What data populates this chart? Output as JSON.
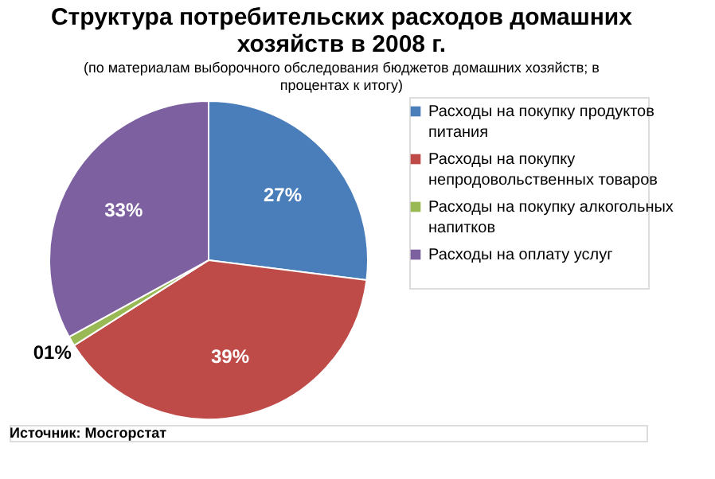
{
  "chart_data": {
    "type": "pie",
    "title": "Структура потребительских расходов домашних хозяйств в 2008 г.",
    "subtitle": "(по материалам выборочного обследования бюджетов домашних хозяйств; в процентах к итогу)",
    "categories": [
      "Расходы на покупку продуктов питания",
      "Расходы на покупку непродовольственных товаров",
      "Расходы на покупку алкогольных напитков",
      "Расходы на оплату услуг"
    ],
    "values": [
      27,
      39,
      1,
      33
    ],
    "colors": [
      "#4a7ebb",
      "#be4b48",
      "#98b954",
      "#7d60a0"
    ],
    "value_labels": [
      "27%",
      "39%",
      "01%",
      "33%"
    ],
    "legend": "right",
    "annotations": [
      "Источник: Мосгорстат"
    ]
  }
}
